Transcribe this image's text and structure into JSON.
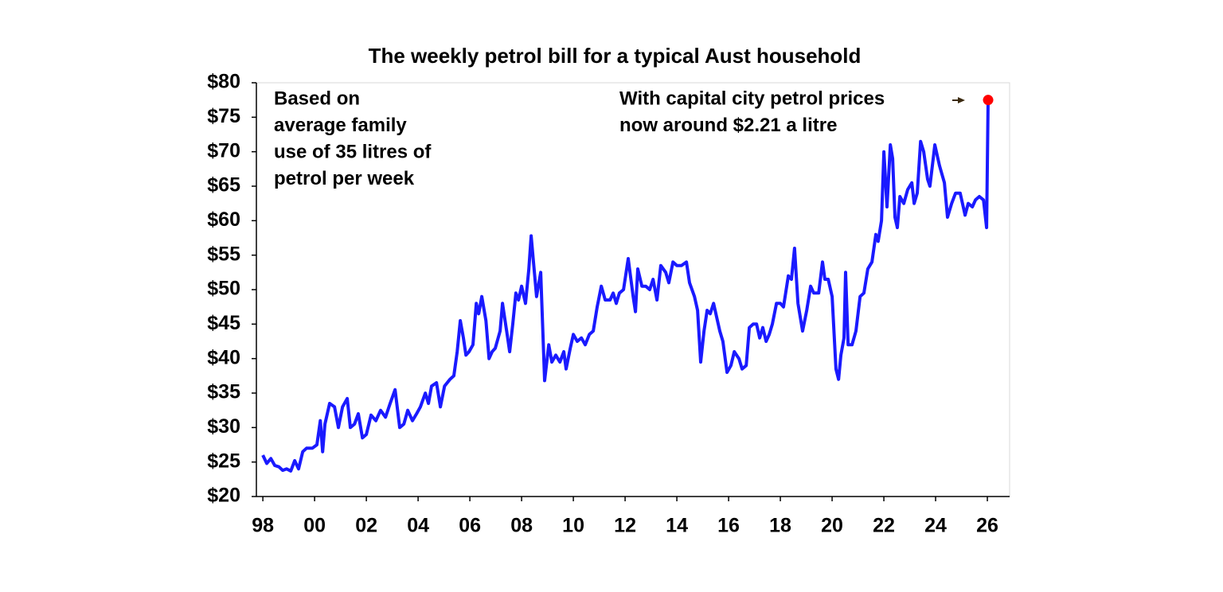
{
  "chart_data": {
    "type": "line",
    "title": "The weekly petrol bill for a typical Aust household",
    "annotations": [
      {
        "lines": [
          "Based on",
          "average family",
          "use of 35 litres of",
          "petrol per week"
        ]
      },
      {
        "lines": [
          "With capital city petrol prices",
          "now around $2.21 a litre"
        ]
      }
    ],
    "x": [
      1998.0,
      1998.15,
      1998.31,
      1998.46,
      1998.62,
      1998.77,
      1998.92,
      1999.08,
      1999.23,
      1999.38,
      1999.54,
      1999.69,
      1999.91,
      2000.09,
      2000.22,
      2000.31,
      2000.4,
      2000.58,
      2000.77,
      2000.92,
      2001.08,
      2001.26,
      2001.38,
      2001.54,
      2001.69,
      2001.85,
      2002.0,
      2002.18,
      2002.37,
      2002.55,
      2002.74,
      2002.92,
      2003.11,
      2003.29,
      2003.45,
      2003.6,
      2003.78,
      2003.94,
      2004.09,
      2004.28,
      2004.4,
      2004.52,
      2004.71,
      2004.86,
      2005.02,
      2005.23,
      2005.38,
      2005.51,
      2005.63,
      2005.75,
      2005.85,
      2005.97,
      2006.12,
      2006.25,
      2006.34,
      2006.46,
      2006.62,
      2006.74,
      2006.86,
      2006.98,
      2007.17,
      2007.26,
      2007.42,
      2007.54,
      2007.66,
      2007.78,
      2007.88,
      2008.0,
      2008.15,
      2008.28,
      2008.37,
      2008.46,
      2008.58,
      2008.74,
      2008.89,
      2009.05,
      2009.17,
      2009.32,
      2009.48,
      2009.63,
      2009.72,
      2009.88,
      2010.0,
      2010.15,
      2010.31,
      2010.46,
      2010.62,
      2010.77,
      2010.92,
      2011.08,
      2011.23,
      2011.42,
      2011.54,
      2011.66,
      2011.78,
      2011.94,
      2012.12,
      2012.31,
      2012.4,
      2012.49,
      2012.65,
      2012.8,
      2012.95,
      2013.08,
      2013.23,
      2013.38,
      2013.57,
      2013.69,
      2013.85,
      2014.0,
      2014.18,
      2014.37,
      2014.49,
      2014.68,
      2014.8,
      2014.92,
      2015.05,
      2015.17,
      2015.29,
      2015.42,
      2015.54,
      2015.66,
      2015.78,
      2015.94,
      2016.09,
      2016.22,
      2016.4,
      2016.52,
      2016.68,
      2016.8,
      2016.95,
      2017.08,
      2017.2,
      2017.32,
      2017.45,
      2017.57,
      2017.69,
      2017.85,
      2018.0,
      2018.12,
      2018.31,
      2018.43,
      2018.55,
      2018.68,
      2018.86,
      2019.02,
      2019.17,
      2019.29,
      2019.48,
      2019.63,
      2019.72,
      2019.85,
      2020.0,
      2020.15,
      2020.25,
      2020.34,
      2020.46,
      2020.52,
      2020.62,
      2020.77,
      2020.92,
      2021.08,
      2021.23,
      2021.38,
      2021.54,
      2021.69,
      2021.78,
      2021.91,
      2022.0,
      2022.12,
      2022.25,
      2022.34,
      2022.43,
      2022.52,
      2022.62,
      2022.77,
      2022.92,
      2023.08,
      2023.17,
      2023.29,
      2023.42,
      2023.54,
      2023.69,
      2023.78,
      2023.97,
      2024.15,
      2024.34,
      2024.46,
      2024.62,
      2024.77,
      2024.95,
      2025.14,
      2025.26,
      2025.42,
      2025.54,
      2025.69,
      2025.85,
      2025.97,
      2026.03
    ],
    "series": [
      {
        "name": "Weekly petrol bill",
        "color": "#1a1aff",
        "values": [
          26.0,
          24.8,
          25.5,
          24.5,
          24.3,
          23.8,
          24.0,
          23.7,
          25.2,
          24.0,
          26.5,
          27.0,
          27.0,
          27.5,
          31.0,
          26.5,
          30.5,
          33.5,
          33.0,
          30.0,
          33.0,
          34.2,
          30.0,
          30.5,
          32.0,
          28.5,
          29.0,
          31.8,
          31.0,
          32.5,
          31.5,
          33.5,
          35.5,
          30.0,
          30.5,
          32.5,
          31.0,
          32.0,
          33.0,
          35.0,
          33.5,
          36.0,
          36.5,
          33.0,
          36.0,
          37.0,
          37.5,
          41.0,
          45.5,
          43.0,
          40.5,
          41.0,
          42.0,
          48.0,
          46.5,
          49.0,
          45.5,
          40.0,
          41.0,
          41.5,
          44.0,
          48.0,
          44.0,
          41.0,
          45.0,
          49.5,
          48.5,
          50.5,
          48.0,
          53.0,
          57.8,
          54.0,
          49.0,
          52.5,
          36.8,
          42.0,
          39.5,
          40.5,
          39.5,
          41.0,
          38.5,
          41.5,
          43.5,
          42.5,
          43.0,
          42.0,
          43.5,
          44.0,
          47.5,
          50.5,
          48.5,
          48.5,
          49.5,
          48.0,
          49.5,
          50.0,
          54.5,
          49.0,
          46.8,
          53.0,
          50.5,
          50.5,
          50.0,
          51.5,
          48.5,
          53.5,
          52.5,
          51.0,
          54.0,
          53.5,
          53.5,
          54.0,
          51.0,
          49.0,
          47.0,
          39.5,
          44.0,
          47.0,
          46.5,
          48.0,
          46.0,
          44.0,
          42.5,
          38.0,
          39.0,
          41.0,
          40.0,
          38.5,
          39.0,
          44.5,
          45.0,
          45.0,
          43.0,
          44.5,
          42.5,
          43.5,
          45.0,
          48.0,
          48.0,
          47.5,
          52.0,
          51.5,
          56.0,
          48.0,
          44.0,
          47.0,
          50.5,
          49.5,
          49.5,
          54.0,
          51.5,
          51.5,
          49.0,
          38.5,
          37.0,
          40.5,
          43.0,
          52.5,
          42.0,
          42.0,
          44.0,
          49.0,
          49.5,
          53.0,
          54.0,
          58.0,
          57.0,
          60.0,
          70.0,
          62.0,
          71.0,
          69.0,
          60.5,
          59.0,
          63.5,
          62.5,
          64.5,
          65.5,
          62.5,
          64.0,
          71.5,
          70.0,
          66.0,
          65.0,
          71.0,
          68.0,
          65.5,
          60.5,
          62.5,
          64.0,
          64.0,
          60.8,
          62.5,
          62.0,
          63.0,
          63.5,
          63.0,
          59.0,
          77.5
        ]
      }
    ],
    "highlight_color": "#ff0000",
    "ylim": [
      20,
      80
    ],
    "yticks": [
      {
        "value": 20,
        "label": "$20"
      },
      {
        "value": 25,
        "label": "$25"
      },
      {
        "value": 30,
        "label": "$30"
      },
      {
        "value": 35,
        "label": "$35"
      },
      {
        "value": 40,
        "label": "$40"
      },
      {
        "value": 45,
        "label": "$45"
      },
      {
        "value": 50,
        "label": "$50"
      },
      {
        "value": 55,
        "label": "$55"
      },
      {
        "value": 60,
        "label": "$60"
      },
      {
        "value": 65,
        "label": "$65"
      },
      {
        "value": 70,
        "label": "$70"
      },
      {
        "value": 75,
        "label": "$75"
      },
      {
        "value": 80,
        "label": "$80"
      }
    ],
    "xlim": [
      1997.75,
      2026.86
    ],
    "xticks": [
      {
        "value": 1998,
        "label": "98"
      },
      {
        "value": 2000,
        "label": "00"
      },
      {
        "value": 2002,
        "label": "02"
      },
      {
        "value": 2004,
        "label": "04"
      },
      {
        "value": 2006,
        "label": "06"
      },
      {
        "value": 2008,
        "label": "08"
      },
      {
        "value": 2010,
        "label": "10"
      },
      {
        "value": 2012,
        "label": "12"
      },
      {
        "value": 2014,
        "label": "14"
      },
      {
        "value": 2016,
        "label": "16"
      },
      {
        "value": 2018,
        "label": "18"
      },
      {
        "value": 2020,
        "label": "20"
      },
      {
        "value": 2022,
        "label": "22"
      },
      {
        "value": 2024,
        "label": "24"
      },
      {
        "value": 2026,
        "label": "26"
      }
    ],
    "grid": false
  }
}
